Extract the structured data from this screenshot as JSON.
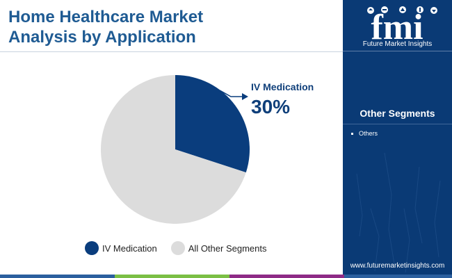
{
  "title": {
    "line1": "Home Healthcare Market",
    "line2": "Analysis by Application"
  },
  "brand": {
    "logo_text": "fmi",
    "caption": "Future Market Insights",
    "website": "www.futuremarketinsights.com"
  },
  "sidebar": {
    "heading": "Other Segments",
    "items": [
      "Others"
    ]
  },
  "colors": {
    "title": "#1f5b93",
    "panel": "#0a3a75",
    "iv_medication": "#0a3d7d",
    "all_other": "#dcdcdc",
    "bar": [
      "#2b5f9e",
      "#7bbf45",
      "#8e2b86",
      "#2b5f9e"
    ]
  },
  "icons": [
    "fmi-logo-icon",
    "arrow-right-icon"
  ],
  "chart_data": {
    "type": "pie",
    "series": [
      {
        "name": "IV Medication",
        "value": 30
      },
      {
        "name": "All Other Segments",
        "value": 70
      }
    ],
    "annotation": {
      "label": "IV Medication",
      "value": "30%"
    },
    "legend": [
      "IV Medication",
      "All Other Segments"
    ],
    "legend_position": "bottom"
  }
}
